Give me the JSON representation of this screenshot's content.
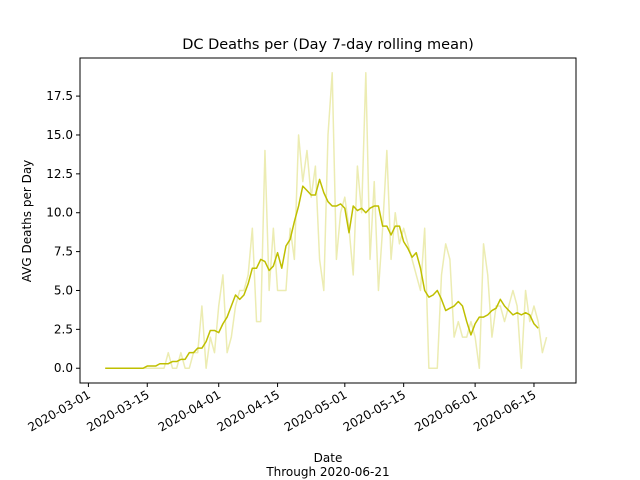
{
  "chart_data": {
    "type": "line",
    "title": "DC Deaths per (Day 7-day rolling mean)",
    "xlabel": "Date",
    "xlabel_sub": "Through 2020-06-21",
    "ylabel": "AVG Deaths per Day",
    "x_axis_type": "date",
    "xlim": [
      "2020-02-28",
      "2020-06-25"
    ],
    "ylim": [
      -0.95,
      19.95
    ],
    "x_ticks": [
      "2020-03-01",
      "2020-03-15",
      "2020-04-01",
      "2020-04-15",
      "2020-05-01",
      "2020-05-15",
      "2020-06-01",
      "2020-06-15"
    ],
    "y_ticks": [
      0.0,
      2.5,
      5.0,
      7.5,
      10.0,
      12.5,
      15.0,
      17.5
    ],
    "y_tick_labels": [
      "0.0",
      "2.5",
      "5.0",
      "7.5",
      "10.0",
      "12.5",
      "15.0",
      "17.5"
    ],
    "grid": false,
    "legend": "none",
    "series": [
      {
        "kind": "daily",
        "color": "#bfbf00",
        "opacity": 0.3,
        "start_date": "2020-03-05",
        "values": [
          0,
          0,
          0,
          0,
          0,
          0,
          0,
          0,
          0,
          0,
          0,
          0,
          0,
          0,
          0,
          1,
          0,
          0,
          1,
          0,
          0,
          1,
          1,
          4,
          0,
          2,
          1,
          4,
          6,
          1,
          2,
          4,
          5,
          5,
          6,
          9,
          3,
          3,
          14,
          5,
          9,
          5,
          5,
          5,
          9,
          7,
          15,
          12,
          14,
          11,
          13,
          7,
          5,
          15,
          19,
          7,
          10,
          11,
          9,
          6,
          13,
          10,
          19,
          7,
          12,
          5,
          9,
          14,
          7,
          10,
          8,
          9,
          8,
          7,
          6,
          5,
          9,
          0,
          0,
          0,
          6,
          8,
          7,
          2,
          3,
          2,
          2,
          3,
          2,
          0,
          8,
          6,
          2,
          4,
          4,
          3,
          4,
          5,
          4,
          0,
          5,
          3,
          4,
          3,
          1,
          2
        ]
      },
      {
        "kind": "rolling_mean",
        "color": "#bfbf00",
        "opacity": 1.0,
        "start_date": "2020-03-05",
        "values": [
          0,
          0,
          0,
          0,
          0,
          0,
          0,
          0,
          0,
          0,
          0.14,
          0.14,
          0.14,
          0.29,
          0.29,
          0.29,
          0.43,
          0.43,
          0.57,
          0.57,
          1.0,
          1.0,
          1.29,
          1.29,
          1.71,
          2.43,
          2.43,
          2.29,
          2.86,
          3.29,
          4.0,
          4.71,
          4.43,
          4.71,
          5.43,
          6.43,
          6.43,
          7.0,
          6.86,
          6.29,
          6.57,
          7.43,
          6.43,
          7.86,
          8.29,
          9.43,
          10.43,
          11.71,
          11.43,
          11.14,
          11.14,
          12.14,
          11.29,
          10.71,
          10.43,
          10.43,
          10.57,
          10.29,
          8.71,
          10.43,
          10.14,
          10.29,
          10.0,
          10.29,
          10.43,
          10.43,
          9.14,
          9.14,
          8.57,
          9.14,
          9.14,
          8.14,
          7.71,
          7.14,
          7.43,
          6.43,
          5.0,
          4.57,
          4.71,
          5.0,
          4.43,
          3.71,
          3.86,
          4.0,
          4.29,
          4.0,
          3.0,
          2.14,
          2.86,
          3.29,
          3.29,
          3.43,
          3.71,
          3.86,
          4.43,
          4.0,
          3.71,
          3.43,
          3.57,
          3.43,
          3.57,
          3.43,
          2.86,
          2.57
        ]
      }
    ]
  }
}
